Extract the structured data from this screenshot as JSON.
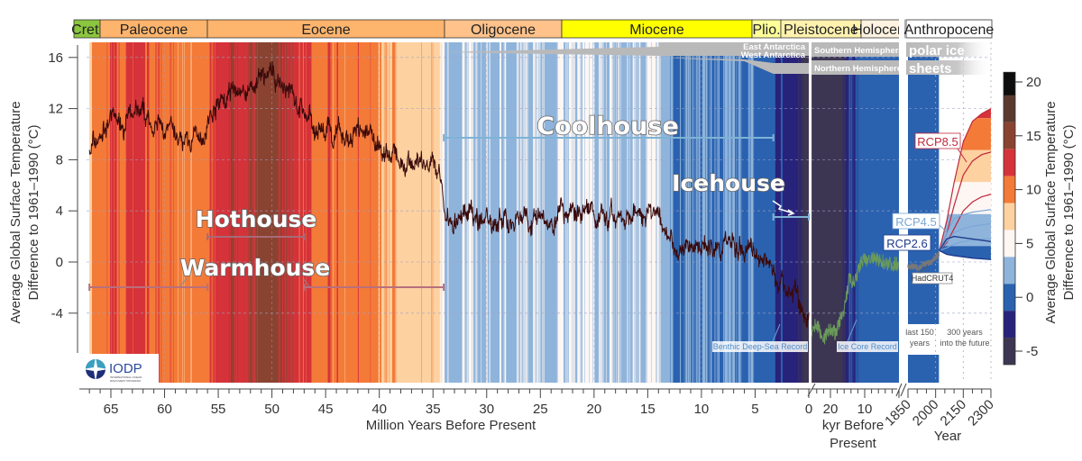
{
  "chart_data": {
    "type": "line",
    "ylabel_left": [
      "Average Global Surface Temperature",
      "Difference to 1961–1990 (°C)"
    ],
    "ylabel_right": [
      "Average Global Surface Temperature",
      "Difference to 1961–1990 (°C)"
    ],
    "ylim": [
      -9.4,
      17.2
    ],
    "y_ticks": [
      16,
      12,
      8,
      4,
      0,
      -4
    ],
    "grid": true,
    "panels": [
      {
        "id": "myr",
        "xlabel": "Million Years Before Present",
        "x_unit": "Ma",
        "xlim": [
          67,
          0
        ],
        "x_ticks": [
          65,
          60,
          55,
          50,
          45,
          40,
          35,
          30,
          25,
          20,
          15,
          10,
          5,
          0
        ],
        "series": [
          {
            "name": "Benthic Deep-Sea Record",
            "color": "#3a0a0a",
            "x": [
              67,
              66,
              65,
              63,
              61,
              59,
              57.5,
              56,
              55,
              53,
              51,
              49.5,
              48,
              47,
              46,
              44.5,
              43,
              41.5,
              40,
              38.5,
              37,
              35.5,
              34.2,
              33.8,
              32,
              30,
              27,
              25,
              22,
              20,
              18,
              16,
              15,
              14,
              13,
              11,
              9,
              7,
              5.5,
              4,
              3,
              2,
              1,
              0
            ],
            "y": [
              8.8,
              9.8,
              11.2,
              11.3,
              10.8,
              9.6,
              9.3,
              10.8,
              12.3,
              13.2,
              14,
              14.2,
              13.2,
              11.6,
              10.2,
              9.5,
              9.5,
              10.3,
              8.8,
              8.3,
              8,
              7.4,
              6.4,
              3.6,
              3.7,
              3.3,
              3.5,
              3.4,
              3.6,
              3.8,
              3.5,
              4,
              4.3,
              3.2,
              1.9,
              1.3,
              0.9,
              1.2,
              0.9,
              0.1,
              -0.8,
              -1.8,
              -2.8,
              -4.2
            ]
          }
        ]
      },
      {
        "id": "kyr",
        "xlabel": [
          "kyr Before",
          "Present"
        ],
        "x_unit": "kyr",
        "xlim": [
          25.5,
          0
        ],
        "x_ticks": [
          20,
          10
        ],
        "series": [
          {
            "name": "Ice Core Record",
            "color": "#6a9a5a",
            "x": [
              25.5,
              24,
              22,
              20,
              18.5,
              17,
              15.5,
              14.5,
              13,
              12,
              11,
              10,
              8,
              6,
              4,
              2,
              0
            ],
            "y": [
              -5.5,
              -4.8,
              -6,
              -5.2,
              -5.6,
              -4.5,
              -3.2,
              -1.2,
              -1.8,
              -0.8,
              0,
              0.1,
              0.3,
              0.1,
              0,
              -0.2,
              -0.1
            ]
          }
        ]
      },
      {
        "id": "year",
        "xlabel": "Year",
        "x_unit": "year",
        "xlim": [
          1850,
          2300
        ],
        "x_ticks": [
          1850,
          2000,
          2150,
          2300
        ],
        "series": [
          {
            "name": "HadCRUT4",
            "color": "#777777",
            "x": [
              1850,
              1870,
              1890,
              1910,
              1930,
              1950,
              1970,
              1990,
              2005,
              2018
            ],
            "y": [
              -0.35,
              -0.3,
              -0.4,
              -0.45,
              -0.2,
              -0.1,
              -0.05,
              0.25,
              0.45,
              0.6
            ]
          },
          {
            "name": "RCP8.5",
            "color": "#c0283a",
            "x": [
              2020,
              2060,
              2100,
              2150,
              2200,
              2250,
              2300
            ],
            "upper": [
              0.9,
              3.2,
              6.2,
              9.4,
              11,
              11.6,
              12
            ],
            "mid": [
              0.9,
              2.2,
              4.4,
              6.8,
              7.9,
              8.4,
              8.6
            ],
            "lower": [
              0.9,
              1.5,
              2.6,
              4,
              4.7,
              5.1,
              5.3
            ]
          },
          {
            "name": "RCP4.5",
            "color": "#7aa6d6",
            "x": [
              2020,
              2060,
              2100,
              2150,
              2200,
              2250,
              2300
            ],
            "upper": [
              0.9,
              2.2,
              3.4,
              3.7,
              3.9,
              4,
              4.1
            ],
            "mid": [
              0.9,
              1.6,
              2.3,
              2.6,
              2.8,
              2.9,
              3
            ],
            "lower": [
              0.9,
              1.1,
              1.4,
              1.6,
              1.7,
              1.8,
              1.8
            ]
          },
          {
            "name": "RCP2.6",
            "color": "#1e3a8a",
            "x": [
              2020,
              2060,
              2100,
              2150,
              2200,
              2250,
              2300
            ],
            "upper": [
              0.9,
              1.8,
              2,
              1.9,
              1.8,
              1.7,
              1.6
            ],
            "lower": [
              0.9,
              0.6,
              0.5,
              0.4,
              0.3,
              0.25,
              0.2
            ]
          }
        ]
      }
    ],
    "colorbar": {
      "ticks": [
        20,
        15,
        10,
        5,
        0,
        -5
      ],
      "bins": [
        {
          "min": 18.75,
          "max": 21.25,
          "color": "#0d0d0d"
        },
        {
          "min": 16.25,
          "max": 18.75,
          "color": "#5b3a2e"
        },
        {
          "min": 13.75,
          "max": 16.25,
          "color": "#8a4331"
        },
        {
          "min": 11.25,
          "max": 13.75,
          "color": "#d6323a"
        },
        {
          "min": 8.75,
          "max": 11.25,
          "color": "#f47a38"
        },
        {
          "min": 6.25,
          "max": 8.75,
          "color": "#fdd1a0"
        },
        {
          "min": 3.75,
          "max": 6.25,
          "color": "#fdf6f3"
        },
        {
          "min": 1.25,
          "max": 3.75,
          "color": "#8fb4db"
        },
        {
          "min": -1.25,
          "max": 1.25,
          "color": "#2a62b0"
        },
        {
          "min": -3.75,
          "max": -1.25,
          "color": "#28237a"
        },
        {
          "min": -6.25,
          "max": -3.75,
          "color": "#3d3652"
        }
      ]
    },
    "epochs": [
      {
        "name": "Cret.",
        "color": "#8cc63f"
      },
      {
        "name": "Paleocene",
        "color": "#fdb46c"
      },
      {
        "name": "Eocene",
        "color": "#fdb46c"
      },
      {
        "name": "Oligocene",
        "color": "#fec28a"
      },
      {
        "name": "Miocene",
        "color": "#ffff00"
      },
      {
        "name": "Plio.",
        "color": "#ffff99"
      },
      {
        "name": "Pleistocene",
        "color": "#fff2ae"
      },
      {
        "name": "Holocene",
        "color": "#fef2e0"
      },
      {
        "name": "Anthropocene",
        "color": "#ffffff"
      }
    ],
    "climate_states": [
      {
        "name": "Hothouse",
        "from_ma": 56,
        "to_ma": 47,
        "color": "#a86a78"
      },
      {
        "name": "Warmhouse",
        "ranges_ma": [
          [
            67,
            56
          ],
          [
            47,
            34
          ]
        ],
        "color": "#b8707e"
      },
      {
        "name": "Coolhouse",
        "from_ma": 34,
        "to_ma": 3.3,
        "color": "#7fb3d5"
      },
      {
        "name": "Icehouse",
        "from_ma": 3.3,
        "to_ma": 0,
        "color": "#7fb3d5"
      }
    ],
    "ice_sheets": {
      "east": "East Antarctica",
      "west": "West Antarctica",
      "south": "Southern Hemisphere",
      "north": "Northern Hemisphere",
      "polar1": "polar ice",
      "polar2": "sheets"
    },
    "annotations": {
      "benthic": "Benthic Deep-Sea Record",
      "icecore": "Ice Core Record",
      "last150_1": "last 150",
      "last150_2": "years",
      "future_1": "300 years",
      "future_2": "into the future",
      "rcp85": "RCP8.5",
      "rcp45": "RCP4.5",
      "rcp26": "RCP2.6",
      "hadcrut": "HadCRUT4"
    },
    "logo": {
      "text": "IODP",
      "subtitle1": "INTERNATIONAL OCEAN",
      "subtitle2": "DISCOVERY PROGRAM"
    }
  }
}
